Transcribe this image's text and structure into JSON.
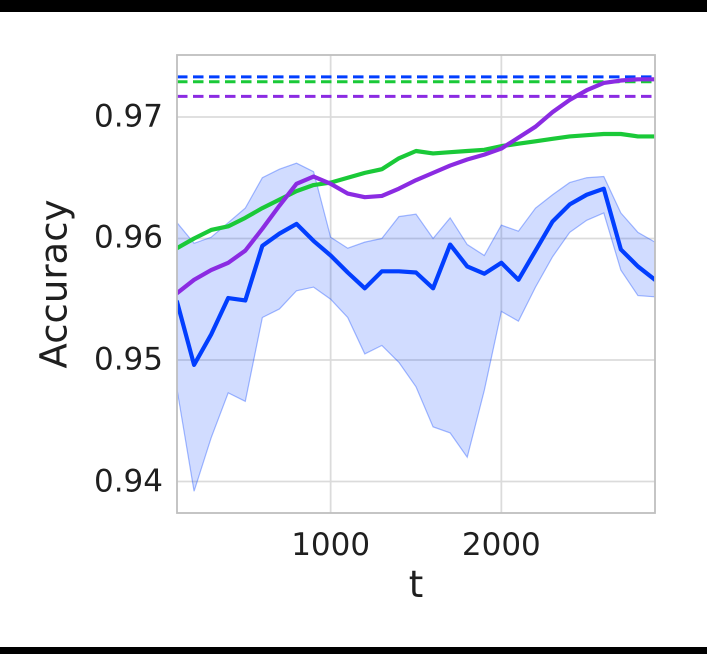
{
  "figure": {
    "background": "#ffffff",
    "letterbox_color": "#000000"
  },
  "chart_data": {
    "type": "line",
    "title": "",
    "xlabel": "t",
    "ylabel": "Accuracy",
    "xlim": [
      100,
      2900
    ],
    "ylim": [
      0.93741,
      0.9751
    ],
    "grid": true,
    "legend_position": "none",
    "xticks": [
      1000,
      2000
    ],
    "xtick_labels": [
      "1000",
      "2000"
    ],
    "yticks": [
      0.97,
      0.96,
      0.95,
      0.94
    ],
    "ytick_labels": [
      "0.97",
      "0.96",
      "0.95",
      "0.94"
    ],
    "x": [
      100,
      200,
      300,
      400,
      500,
      600,
      700,
      800,
      900,
      1000,
      1100,
      1200,
      1300,
      1400,
      1500,
      1600,
      1700,
      1800,
      1900,
      2000,
      2100,
      2200,
      2300,
      2400,
      2500,
      2600,
      2700,
      2800,
      2900
    ],
    "series": [
      {
        "name": "green-line",
        "color": "#1AC938",
        "style": "solid",
        "values": [
          0.9592,
          0.96,
          0.9607,
          0.961,
          0.9617,
          0.9625,
          0.9632,
          0.9639,
          0.9644,
          0.9646,
          0.965,
          0.9654,
          0.9657,
          0.9666,
          0.9672,
          0.967,
          0.9671,
          0.9672,
          0.9673,
          0.9676,
          0.9678,
          0.968,
          0.9682,
          0.9684,
          0.9685,
          0.9686,
          0.9686,
          0.9684,
          0.9684
        ]
      },
      {
        "name": "purple-line",
        "color": "#8B2BE2",
        "style": "solid",
        "values": [
          0.9555,
          0.9566,
          0.9574,
          0.958,
          0.959,
          0.9608,
          0.9627,
          0.9645,
          0.9651,
          0.9645,
          0.9637,
          0.9634,
          0.9635,
          0.9641,
          0.9648,
          0.9654,
          0.966,
          0.9665,
          0.9669,
          0.9674,
          0.9683,
          0.9692,
          0.9704,
          0.9714,
          0.9722,
          0.9728,
          0.973,
          0.9731,
          0.9731
        ]
      },
      {
        "name": "blue-mean-line",
        "color": "#023EFF",
        "style": "solid",
        "values": [
          0.9548,
          0.9496,
          0.9521,
          0.9551,
          0.9549,
          0.9594,
          0.9604,
          0.9612,
          0.9598,
          0.9586,
          0.9572,
          0.9559,
          0.9573,
          0.9573,
          0.9572,
          0.9559,
          0.9595,
          0.9577,
          0.9571,
          0.958,
          0.9566,
          0.959,
          0.9614,
          0.9628,
          0.9636,
          0.9641,
          0.9591,
          0.9577,
          0.9566
        ]
      }
    ],
    "band": {
      "for_series": "blue-mean-line",
      "color": "#023EFF",
      "fill_opacity": 0.18,
      "edge_opacity": 0.35,
      "upper": [
        0.9613,
        0.9596,
        0.9601,
        0.9613,
        0.9625,
        0.965,
        0.9657,
        0.9662,
        0.9655,
        0.9601,
        0.9592,
        0.9597,
        0.96,
        0.9618,
        0.962,
        0.96,
        0.9617,
        0.9595,
        0.9586,
        0.9611,
        0.9606,
        0.9625,
        0.9636,
        0.9646,
        0.965,
        0.9651,
        0.9621,
        0.9605,
        0.9597
      ],
      "lower": [
        0.9476,
        0.9392,
        0.9436,
        0.9473,
        0.9466,
        0.9535,
        0.9542,
        0.9557,
        0.956,
        0.955,
        0.9535,
        0.9505,
        0.9512,
        0.9498,
        0.9478,
        0.9445,
        0.944,
        0.942,
        0.9475,
        0.954,
        0.9532,
        0.956,
        0.9585,
        0.9605,
        0.9615,
        0.9621,
        0.9574,
        0.9553,
        0.9552
      ]
    },
    "hlines": [
      {
        "name": "blue-dashed-asymptote",
        "color": "#023EFF",
        "y": 0.9733,
        "style": "dashed"
      },
      {
        "name": "green-dashed-asymptote",
        "color": "#1AC938",
        "y": 0.9729,
        "style": "dashed"
      },
      {
        "name": "purple-dashed-asymptote",
        "color": "#8B2BE2",
        "y": 0.9717,
        "style": "dashed"
      }
    ],
    "colors": {
      "grid": "#DBDBDB",
      "spine": "#BFBFBF",
      "text": "#1f1f1f",
      "plot_background": "#ffffff"
    }
  }
}
